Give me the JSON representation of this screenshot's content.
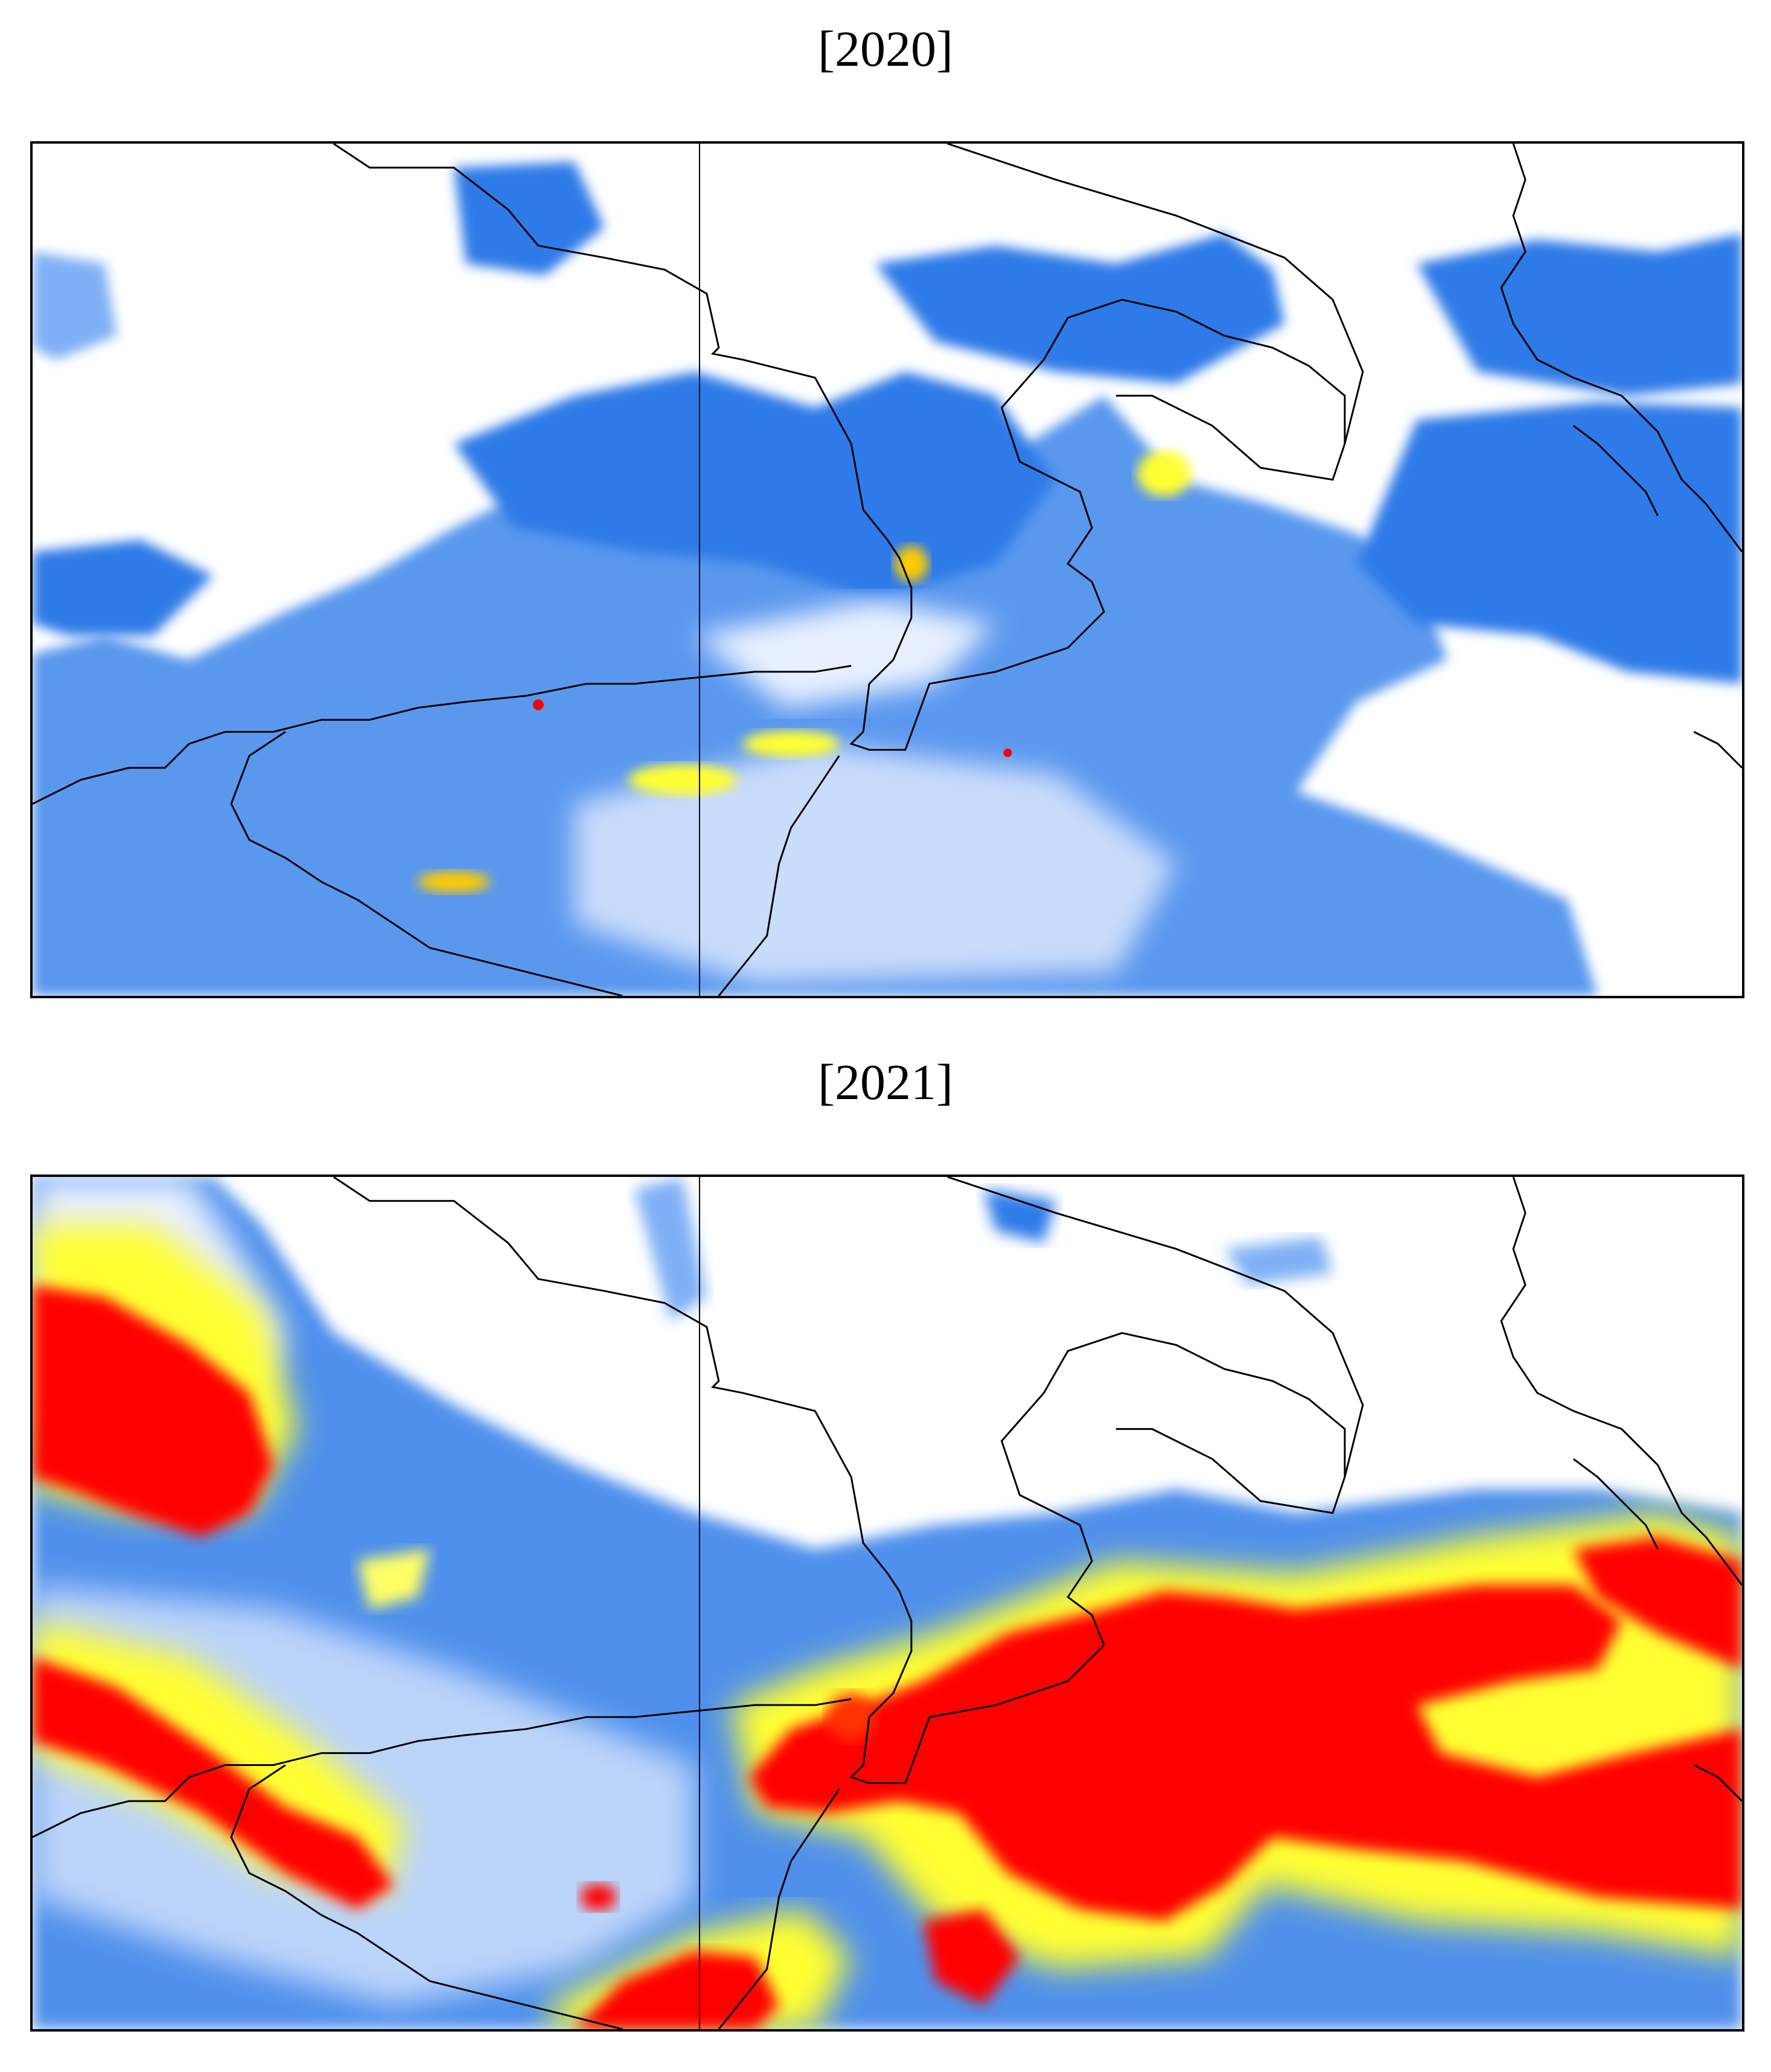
{
  "panels": [
    {
      "title": "[2020]"
    },
    {
      "title": "[2021]"
    }
  ],
  "colors": {
    "low": "#1f6fe5",
    "mid_low": "#7fb0f5",
    "pale": "#e8f0ff",
    "yellow": "#ffff33",
    "red": "#ff0000",
    "coast": "#000000"
  }
}
